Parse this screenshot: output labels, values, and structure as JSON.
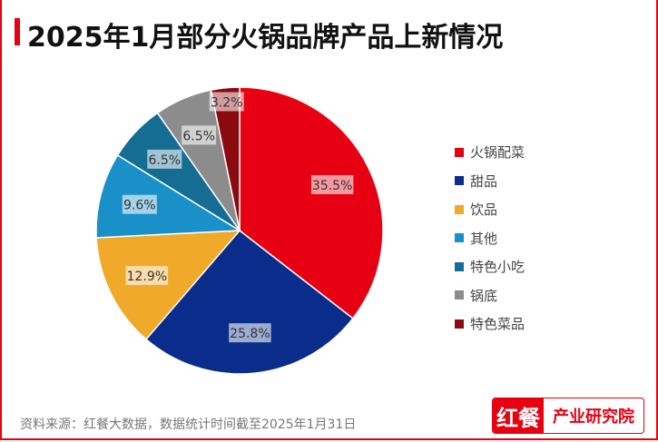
{
  "title": "2025年1月部分火锅品牌产品上新情况",
  "source": "资料来源：红餐大数据，数据统计时间截至2025年1月31日",
  "logo": {
    "left": "红餐",
    "right": "产业研究院"
  },
  "chart_data": {
    "type": "pie",
    "title": "2025年1月部分火锅品牌产品上新情况",
    "legend_position": "right",
    "categories": [
      "火锅配菜",
      "甜品",
      "饮品",
      "其他",
      "特色小吃",
      "锅底",
      "特色菜品"
    ],
    "values": [
      35.5,
      25.8,
      12.9,
      9.6,
      6.5,
      6.5,
      3.2
    ],
    "labels": [
      "35.5%",
      "25.8%",
      "12.9%",
      "9.6%",
      "6.5%",
      "6.5%",
      "3.2%"
    ],
    "colors": [
      "#e60012",
      "#0a2d8c",
      "#f0a928",
      "#1a90c8",
      "#156d94",
      "#8c8c8c",
      "#8a0a10"
    ]
  }
}
